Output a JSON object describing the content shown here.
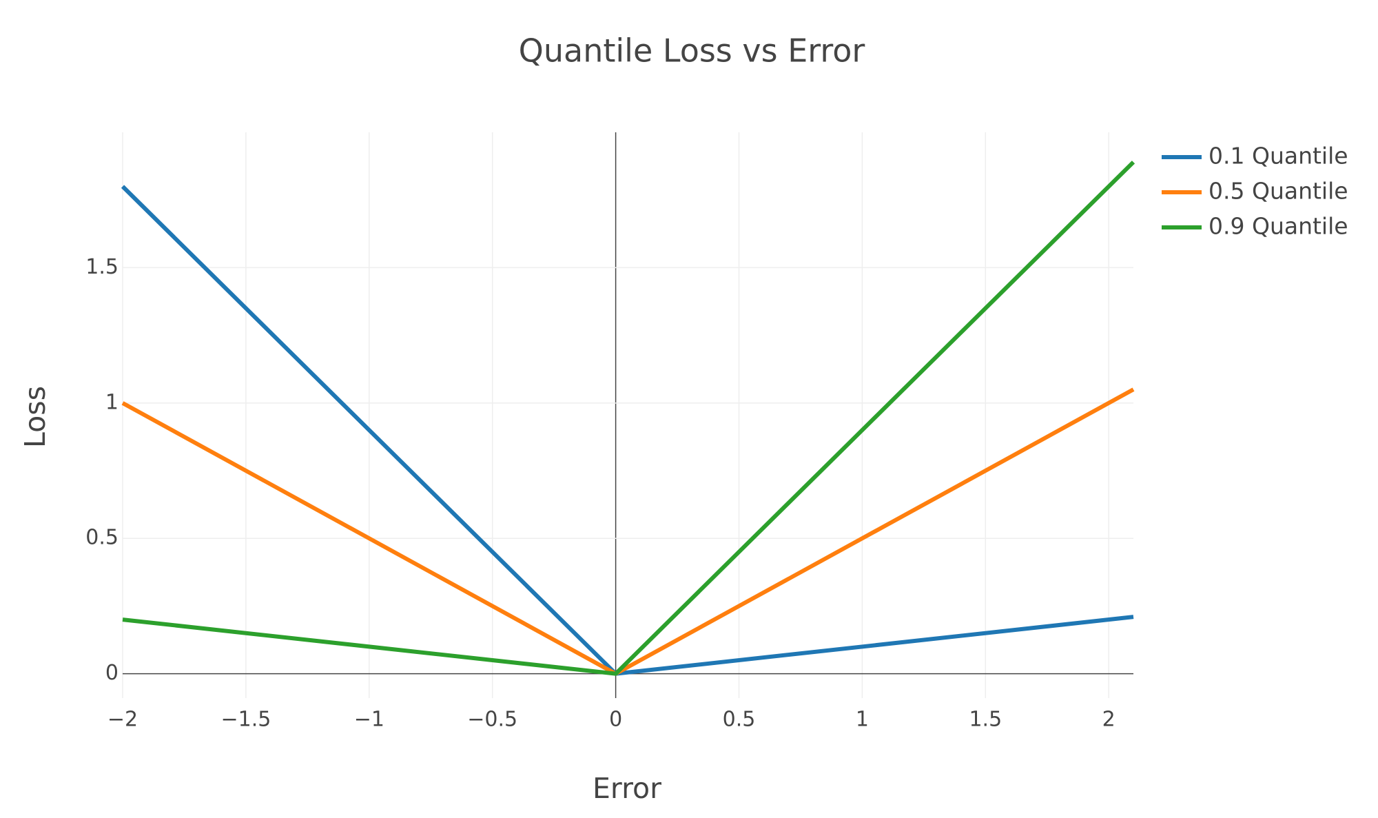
{
  "chart_data": {
    "type": "line",
    "title": "Quantile Loss vs Error",
    "x_label": "Error",
    "y_label": "Loss",
    "x": [
      -2,
      0,
      2.1
    ],
    "series": [
      {
        "name": "0.1 Quantile",
        "color": "#1f77b4",
        "values": [
          1.8,
          0,
          0.21
        ]
      },
      {
        "name": "0.5 Quantile",
        "color": "#ff7f0e",
        "values": [
          1,
          0,
          1.05
        ]
      },
      {
        "name": "0.9 Quantile",
        "color": "#2ca02c",
        "values": [
          0.2,
          0,
          1.89
        ]
      }
    ],
    "xlim": [
      -2,
      2.1
    ],
    "ylim": [
      -0.09,
      2
    ],
    "xticks": [
      {
        "value": -2,
        "label": "−2"
      },
      {
        "value": -1.5,
        "label": "−1.5"
      },
      {
        "value": -1,
        "label": "−1"
      },
      {
        "value": -0.5,
        "label": "−0.5"
      },
      0,
      0.5,
      1,
      1.5,
      2
    ],
    "yticks": [
      0,
      0.5,
      1,
      1.5
    ],
    "grid": true,
    "legend": "right"
  }
}
